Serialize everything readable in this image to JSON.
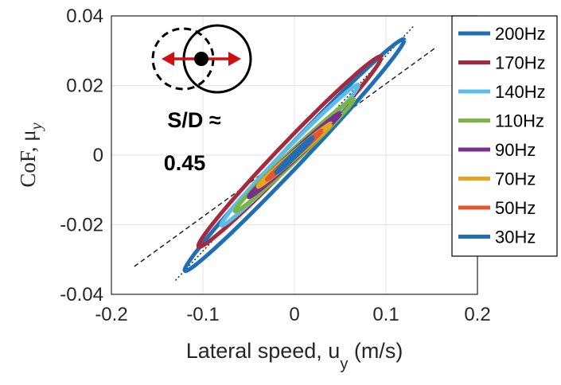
{
  "chart_data": {
    "type": "line",
    "xlabel": "Lateral speed, u",
    "xlabel_sub": "y",
    "xlabel_unit": " (m/s)",
    "ylabel": "CoF, μ",
    "ylabel_sub": "y",
    "xlim": [
      -0.2,
      0.2
    ],
    "ylim": [
      -0.04,
      0.04
    ],
    "xticks": [
      -0.2,
      -0.1,
      0,
      0.1,
      0.2
    ],
    "yticks": [
      -0.04,
      -0.02,
      0,
      0.02,
      0.04
    ],
    "xtick_labels": [
      "-0.2",
      "-0.1",
      "0",
      "0.1",
      "0.2"
    ],
    "ytick_labels": [
      "-0.04",
      "-0.02",
      "0",
      "0.02",
      "0.04"
    ],
    "grid": true,
    "legend_position": "right",
    "annotation": {
      "line1": "S/D ≈",
      "line2": "0.45"
    },
    "series": [
      {
        "name": "200Hz",
        "color": "#1f6fb5",
        "center": [
          0.0,
          0.0
        ],
        "ux": 0.12,
        "vy": 0.033,
        "w": 0.02,
        "h": 0.006
      },
      {
        "name": "170Hz",
        "color": "#a52a3c",
        "center": [
          -0.005,
          0.001
        ],
        "ux": 0.1,
        "vy": 0.027,
        "w": 0.026,
        "h": 0.006
      },
      {
        "name": "140Hz",
        "color": "#5bbde8",
        "center": [
          -0.005,
          0.0
        ],
        "ux": 0.075,
        "vy": 0.02,
        "w": 0.018,
        "h": 0.004
      },
      {
        "name": "110Hz",
        "color": "#7ab443",
        "center": [
          0.0,
          0.0
        ],
        "ux": 0.065,
        "vy": 0.016,
        "w": 0.01,
        "h": 0.003
      },
      {
        "name": "90Hz",
        "color": "#7a2e8e",
        "center": [
          0.0,
          0.0
        ],
        "ux": 0.05,
        "vy": 0.012,
        "w": 0.006,
        "h": 0.002
      },
      {
        "name": "70Hz",
        "color": "#e7a420",
        "center": [
          0.0,
          0.0
        ],
        "ux": 0.04,
        "vy": 0.009,
        "w": 0.004,
        "h": 0.0015
      },
      {
        "name": "50Hz",
        "color": "#e4572e",
        "center": [
          0.0,
          0.0
        ],
        "ux": 0.03,
        "vy": 0.007,
        "w": 0.003,
        "h": 0.001
      },
      {
        "name": "30Hz",
        "color": "#1f6fb5",
        "center": [
          0.0,
          0.0
        ],
        "ux": 0.02,
        "vy": 0.005,
        "w": 0.002,
        "h": 0.001
      }
    ],
    "reference_lines": [
      {
        "from": [
          -0.175,
          -0.032
        ],
        "to": [
          0.155,
          0.031
        ]
      },
      {
        "from": [
          -0.13,
          -0.036
        ],
        "to": [
          0.13,
          0.037
        ]
      }
    ]
  }
}
